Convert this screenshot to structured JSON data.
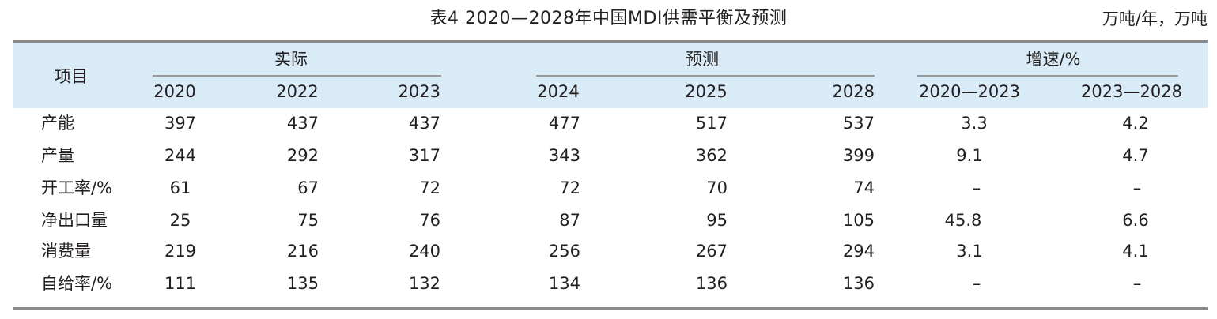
{
  "title": "表4  2020—2028年中国MDI供需平衡及预测",
  "unit": "万吨/年，万吨",
  "header": {
    "item": "项目",
    "group_actual": "实际",
    "group_forecast": "预测",
    "group_growth": "增速/%",
    "years": [
      "2020",
      "2022",
      "2023",
      "2024",
      "2025",
      "2028"
    ],
    "growth_periods": [
      "2020—2023",
      "2023—2028"
    ]
  },
  "rows": [
    {
      "label": "产能",
      "values": [
        "397",
        "437",
        "437",
        "477",
        "517",
        "537"
      ],
      "growth": [
        "3.3",
        "4.2"
      ]
    },
    {
      "label": "产量",
      "values": [
        "244",
        "292",
        "317",
        "343",
        "362",
        "399"
      ],
      "growth": [
        "9.1",
        "4.7"
      ]
    },
    {
      "label": "开工率/%",
      "values": [
        "61",
        "67",
        "72",
        "72",
        "70",
        "74"
      ],
      "growth": [
        "–",
        "–"
      ]
    },
    {
      "label": "净出口量",
      "values": [
        "25",
        "75",
        "76",
        "87",
        "95",
        "105"
      ],
      "growth": [
        "45.8",
        "6.6"
      ]
    },
    {
      "label": "消费量",
      "values": [
        "219",
        "216",
        "240",
        "256",
        "267",
        "294"
      ],
      "growth": [
        "3.1",
        "4.1"
      ]
    },
    {
      "label": "自给率/%",
      "values": [
        "111",
        "135",
        "132",
        "134",
        "136",
        "136"
      ],
      "growth": [
        "–",
        "–"
      ]
    }
  ],
  "colors": {
    "header_bg": "#d9ebf6",
    "rule": "#8a8a8a",
    "text": "#231f20"
  }
}
